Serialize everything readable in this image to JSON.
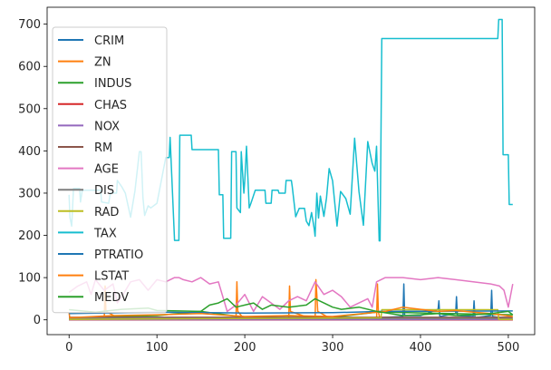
{
  "chart_data": {
    "type": "line",
    "title": "",
    "xlabel": "",
    "ylabel": "",
    "xlim": [
      -25,
      530
    ],
    "ylim": [
      -35,
      740
    ],
    "x_ticks": [
      0,
      100,
      200,
      300,
      400,
      500
    ],
    "y_ticks": [
      0,
      100,
      200,
      300,
      400,
      500,
      600,
      700
    ],
    "x_tick_labels": [
      "0",
      "100",
      "200",
      "300",
      "400",
      "500"
    ],
    "y_tick_labels": [
      "0",
      "100",
      "200",
      "300",
      "400",
      "500",
      "600",
      "700"
    ],
    "legend_position": "upper-left",
    "series": [
      {
        "name": "CRIM",
        "color": "#1f77b4",
        "points": [
          [
            0,
            0
          ],
          [
            100,
            0.2
          ],
          [
            200,
            0.5
          ],
          [
            300,
            1
          ],
          [
            350,
            5
          ],
          [
            380,
            8
          ],
          [
            381,
            85
          ],
          [
            382,
            10
          ],
          [
            400,
            10
          ],
          [
            420,
            25
          ],
          [
            421,
            45
          ],
          [
            422,
            8
          ],
          [
            440,
            15
          ],
          [
            441,
            55
          ],
          [
            442,
            10
          ],
          [
            460,
            8
          ],
          [
            461,
            45
          ],
          [
            462,
            5
          ],
          [
            480,
            10
          ],
          [
            481,
            70
          ],
          [
            482,
            8
          ],
          [
            505,
            1
          ]
        ]
      },
      {
        "name": "ZN",
        "color": "#ff7f0e",
        "points": [
          [
            0,
            18
          ],
          [
            1,
            0
          ],
          [
            40,
            0
          ],
          [
            41,
            80
          ],
          [
            42,
            20
          ],
          [
            60,
            0
          ],
          [
            100,
            0
          ],
          [
            190,
            0
          ],
          [
            191,
            90
          ],
          [
            192,
            20
          ],
          [
            200,
            0
          ],
          [
            250,
            0
          ],
          [
            251,
            80
          ],
          [
            252,
            20
          ],
          [
            280,
            0
          ],
          [
            281,
            95
          ],
          [
            282,
            60
          ],
          [
            283,
            20
          ],
          [
            300,
            0
          ],
          [
            350,
            0
          ],
          [
            351,
            85
          ],
          [
            352,
            20
          ],
          [
            354,
            0
          ],
          [
            505,
            0
          ]
        ]
      },
      {
        "name": "INDUS",
        "color": "#2ca02c",
        "points": [
          [
            0,
            2
          ],
          [
            50,
            8
          ],
          [
            100,
            10
          ],
          [
            150,
            20
          ],
          [
            200,
            6
          ],
          [
            250,
            10
          ],
          [
            300,
            6
          ],
          [
            350,
            18
          ],
          [
            360,
            18
          ],
          [
            505,
            12
          ]
        ]
      },
      {
        "name": "CHAS",
        "color": "#d62728",
        "points": [
          [
            0,
            0
          ],
          [
            505,
            0
          ]
        ]
      },
      {
        "name": "NOX",
        "color": "#9467bd",
        "points": [
          [
            0,
            0.5
          ],
          [
            505,
            0.6
          ]
        ]
      },
      {
        "name": "RM",
        "color": "#8c564b",
        "points": [
          [
            0,
            6
          ],
          [
            505,
            6
          ]
        ]
      },
      {
        "name": "AGE",
        "color": "#e377c2",
        "points": [
          [
            0,
            65
          ],
          [
            10,
            80
          ],
          [
            20,
            90
          ],
          [
            25,
            60
          ],
          [
            30,
            95
          ],
          [
            40,
            70
          ],
          [
            50,
            85
          ],
          [
            55,
            40
          ],
          [
            60,
            55
          ],
          [
            70,
            90
          ],
          [
            80,
            95
          ],
          [
            90,
            70
          ],
          [
            100,
            95
          ],
          [
            110,
            90
          ],
          [
            120,
            100
          ],
          [
            125,
            100
          ],
          [
            130,
            95
          ],
          [
            140,
            90
          ],
          [
            150,
            100
          ],
          [
            160,
            85
          ],
          [
            170,
            90
          ],
          [
            180,
            20
          ],
          [
            190,
            35
          ],
          [
            200,
            60
          ],
          [
            210,
            20
          ],
          [
            220,
            55
          ],
          [
            230,
            40
          ],
          [
            240,
            25
          ],
          [
            250,
            45
          ],
          [
            260,
            55
          ],
          [
            270,
            45
          ],
          [
            280,
            90
          ],
          [
            290,
            60
          ],
          [
            300,
            70
          ],
          [
            310,
            55
          ],
          [
            320,
            30
          ],
          [
            330,
            40
          ],
          [
            340,
            50
          ],
          [
            345,
            30
          ],
          [
            350,
            90
          ],
          [
            360,
            100
          ],
          [
            380,
            100
          ],
          [
            400,
            95
          ],
          [
            420,
            100
          ],
          [
            440,
            95
          ],
          [
            460,
            90
          ],
          [
            480,
            85
          ],
          [
            490,
            80
          ],
          [
            495,
            70
          ],
          [
            500,
            30
          ],
          [
            505,
            85
          ]
        ]
      },
      {
        "name": "DIS",
        "color": "#7f7f7f",
        "points": [
          [
            0,
            4
          ],
          [
            505,
            3
          ]
        ]
      },
      {
        "name": "RAD",
        "color": "#bcbd22",
        "points": [
          [
            0,
            1
          ],
          [
            355,
            5
          ],
          [
            356,
            24
          ],
          [
            488,
            24
          ],
          [
            489,
            1
          ],
          [
            505,
            1
          ]
        ]
      },
      {
        "name": "TAX",
        "color": "#17becf",
        "points": [
          [
            0,
            296
          ],
          [
            1,
            242
          ],
          [
            3,
            222
          ],
          [
            5,
            311
          ],
          [
            12,
            311
          ],
          [
            13,
            279
          ],
          [
            15,
            307
          ],
          [
            36,
            307
          ],
          [
            37,
            279
          ],
          [
            45,
            276
          ],
          [
            47,
            300
          ],
          [
            54,
            300
          ],
          [
            55,
            330
          ],
          [
            60,
            315
          ],
          [
            64,
            300
          ],
          [
            70,
            243
          ],
          [
            75,
            305
          ],
          [
            80,
            398
          ],
          [
            82,
            398
          ],
          [
            84,
            290
          ],
          [
            86,
            247
          ],
          [
            90,
            270
          ],
          [
            93,
            265
          ],
          [
            100,
            276
          ],
          [
            110,
            384
          ],
          [
            114,
            384
          ],
          [
            115,
            432
          ],
          [
            120,
            188
          ],
          [
            125,
            188
          ],
          [
            126,
            437
          ],
          [
            139,
            437
          ],
          [
            140,
            403
          ],
          [
            170,
            403
          ],
          [
            171,
            296
          ],
          [
            175,
            296
          ],
          [
            176,
            193
          ],
          [
            184,
            193
          ],
          [
            185,
            398
          ],
          [
            190,
            398
          ],
          [
            191,
            265
          ],
          [
            195,
            254
          ],
          [
            196,
            398
          ],
          [
            199,
            300
          ],
          [
            200,
            330
          ],
          [
            202,
            411
          ],
          [
            205,
            265
          ],
          [
            207,
            276
          ],
          [
            212,
            307
          ],
          [
            223,
            307
          ],
          [
            224,
            276
          ],
          [
            230,
            276
          ],
          [
            231,
            307
          ],
          [
            238,
            307
          ],
          [
            239,
            300
          ],
          [
            246,
            300
          ],
          [
            247,
            330
          ],
          [
            253,
            330
          ],
          [
            254,
            315
          ],
          [
            258,
            244
          ],
          [
            262,
            264
          ],
          [
            268,
            264
          ],
          [
            270,
            234
          ],
          [
            273,
            223
          ],
          [
            276,
            254
          ],
          [
            279,
            216
          ],
          [
            280,
            198
          ],
          [
            282,
            300
          ],
          [
            284,
            241
          ],
          [
            286,
            293
          ],
          [
            290,
            245
          ],
          [
            293,
            289
          ],
          [
            296,
            358
          ],
          [
            300,
            329
          ],
          [
            305,
            222
          ],
          [
            309,
            304
          ],
          [
            315,
            287
          ],
          [
            320,
            250
          ],
          [
            325,
            430
          ],
          [
            330,
            304
          ],
          [
            335,
            224
          ],
          [
            340,
            422
          ],
          [
            345,
            370
          ],
          [
            348,
            352
          ],
          [
            350,
            411
          ],
          [
            353,
            187
          ],
          [
            354,
            187
          ],
          [
            356,
            666
          ],
          [
            488,
            666
          ],
          [
            489,
            711
          ],
          [
            493,
            711
          ],
          [
            494,
            391
          ],
          [
            500,
            391
          ],
          [
            501,
            273
          ],
          [
            505,
            273
          ]
        ]
      },
      {
        "name": "PTRATIO",
        "color": "#1f77b4",
        "points": [
          [
            0,
            15
          ],
          [
            100,
            18
          ],
          [
            200,
            16
          ],
          [
            300,
            17
          ],
          [
            356,
            20
          ],
          [
            505,
            21
          ]
        ]
      },
      {
        "name": "LSTAT",
        "color": "#ff7f0e",
        "points": [
          [
            0,
            5
          ],
          [
            50,
            10
          ],
          [
            100,
            12
          ],
          [
            150,
            15
          ],
          [
            200,
            8
          ],
          [
            250,
            10
          ],
          [
            300,
            8
          ],
          [
            360,
            20
          ],
          [
            380,
            30
          ],
          [
            400,
            25
          ],
          [
            420,
            20
          ],
          [
            440,
            22
          ],
          [
            460,
            18
          ],
          [
            480,
            15
          ],
          [
            505,
            8
          ]
        ]
      },
      {
        "name": "MEDV",
        "color": "#2ca02c",
        "points": [
          [
            0,
            24
          ],
          [
            30,
            18
          ],
          [
            60,
            25
          ],
          [
            90,
            28
          ],
          [
            100,
            22
          ],
          [
            150,
            20
          ],
          [
            160,
            35
          ],
          [
            170,
            40
          ],
          [
            180,
            50
          ],
          [
            190,
            30
          ],
          [
            200,
            35
          ],
          [
            210,
            40
          ],
          [
            220,
            25
          ],
          [
            230,
            35
          ],
          [
            250,
            30
          ],
          [
            270,
            35
          ],
          [
            280,
            50
          ],
          [
            290,
            40
          ],
          [
            300,
            30
          ],
          [
            310,
            25
          ],
          [
            330,
            30
          ],
          [
            350,
            20
          ],
          [
            380,
            10
          ],
          [
            400,
            12
          ],
          [
            420,
            15
          ],
          [
            440,
            10
          ],
          [
            460,
            12
          ],
          [
            480,
            15
          ],
          [
            500,
            20
          ],
          [
            505,
            12
          ]
        ]
      }
    ]
  }
}
